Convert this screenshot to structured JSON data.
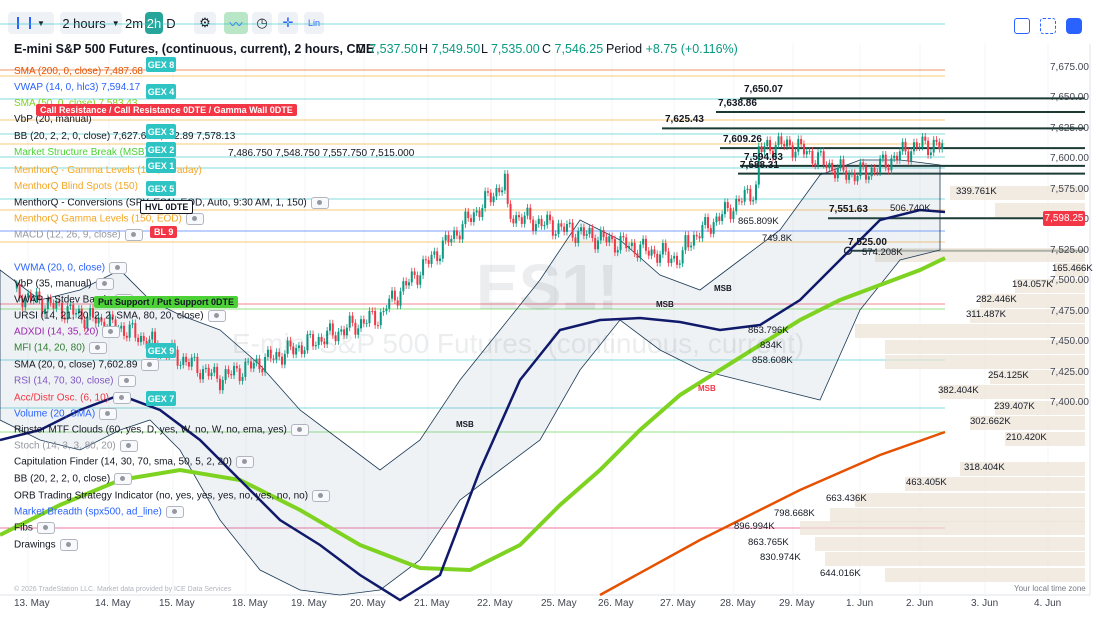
{
  "toolbar": {
    "interval": "2 hours",
    "quick": [
      "2m",
      "2h",
      "D"
    ],
    "lin": "Lin"
  },
  "header": {
    "title": "E-mini S&P 500 Futures, (continuous, current), 2 hours, CME",
    "o_label": "O",
    "o": "7,537.50",
    "h_label": "H",
    "h": "7,549.50",
    "l_label": "L",
    "l": "7,535.00",
    "c_label": "C",
    "c": "7,546.25",
    "period_label": "Period",
    "period": "+8.75 (+0.116%)"
  },
  "indicators": [
    "SMA (200, 0, close)  7,487.68",
    "VWAP (14, 0, hlc3)  7,594.17",
    "SMA (50, 0, close)  7,583.43",
    "VbP (20, manual)",
    "BB (20, 2, 2, 0, close)  7,627.65  7,602.89  7,578.13",
    "Market Structure Break (MSB) D",
    "MenthorQ - Gamma Levels (150, intraday)",
    "MenthorQ Blind Spots (150)",
    "MenthorQ - Conversions (SPY, ES1!, EOD, Auto, 9:30 AM, 1, 150)",
    "MenthorQ Gamma Levels (150, EOD)",
    "MACD (12, 26, 9, close)",
    "VWMA (20, 0, close)",
    "VbP (35, manual)",
    "VWAP + Stdev Bands",
    "URSI (14, 21, 20, 2, 2, SMA, 80, 20, close)",
    "ADXDI (14, 35, 20)",
    "MFI (14, 20, 80)",
    "SMA (20, 0, close)  7,602.89",
    "RSI (14, 70, 30, close)",
    "Acc/Distr Osc. (6, 10)",
    "Volume (20, SMA)",
    "Ripster MTF Clouds (60, yes, D, yes, W, no, W, no, ema, yes)",
    "Stoch (14, 3, 3, 80, 20)",
    "Capitulation Finder (14, 30, 70, sma, 50, 5, 2, 20)",
    "BB (20, 2, 2, 0, close)",
    "ORB Trading Strategy Indicator (no, yes, yes, yes, no, yes, no, no)",
    "Market Breadth (spx500, ad_line)",
    "Fibs",
    "Drawings"
  ],
  "msb_values": "7,486.750  7,548.750  7,557.750  7,515.000",
  "gex_tags": [
    "GEX 8",
    "GEX 4",
    "GEX 3",
    "GEX 2",
    "GEX 1",
    "GEX 5",
    "GEX 9",
    "GEX 7"
  ],
  "tags": {
    "call_resistance": "Call Resistance / Call Resistance 0DTE / Gamma Wall 0DTE",
    "hvl": "HVL 0DTE",
    "bl9": "BL 9",
    "put_support": "Put Support / Put Support 0DTE"
  },
  "levels": [
    "7,650.07",
    "7,638.86",
    "7,625.43",
    "7,609.26",
    "7,594.63",
    "7,588.31",
    "7,551.63",
    "7,525.00"
  ],
  "msb_labels": [
    "MSB",
    "MSB",
    "MSB",
    "MSB"
  ],
  "y_axis": [
    "7,675.00",
    "7,650.00",
    "7,625.00",
    "7,600.00",
    "7,575.00",
    "7,550.00",
    "7,525.00",
    "7,500.00",
    "7,475.00",
    "7,450.00",
    "7,425.00",
    "7,400.00"
  ],
  "x_axis": [
    "13. May",
    "14. May",
    "15. May",
    "18. May",
    "19. May",
    "20. May",
    "21. May",
    "22. May",
    "25. May",
    "26. May",
    "27. May",
    "28. May",
    "29. May",
    "1. Jun",
    "2. Jun",
    "3. Jun",
    "4. Jun"
  ],
  "price_tag": "7,598.25",
  "volume_profile": [
    "339.761K",
    "506.740K",
    "865.809K",
    "749.8K",
    "574.208K",
    "165.466K",
    "194.057K",
    "282.446K",
    "311.487K",
    "863.796K",
    "834K",
    "858.608K",
    "254.125K",
    "382.404K",
    "239.407K",
    "302.662K",
    "210.420K",
    "318.404K",
    "463.405K",
    "663.436K",
    "798.668K",
    "896.994K",
    "863.765K",
    "830.974K",
    "644.016K"
  ],
  "footer": {
    "tz": "Your local time zone",
    "attribution": "© 2026 TradeStation LLC. Market data provided by ICE Data Services"
  },
  "watermark": {
    "symbol": "ES1!",
    "name": "E-mini S&P 500 Futures, (continuous, current)"
  },
  "colors": {
    "accent": "#2962ff",
    "up": "#089981",
    "down": "#f23645",
    "gex": "#2ec4c4",
    "sma50": "#7ed321",
    "sma200": "#e65100"
  }
}
